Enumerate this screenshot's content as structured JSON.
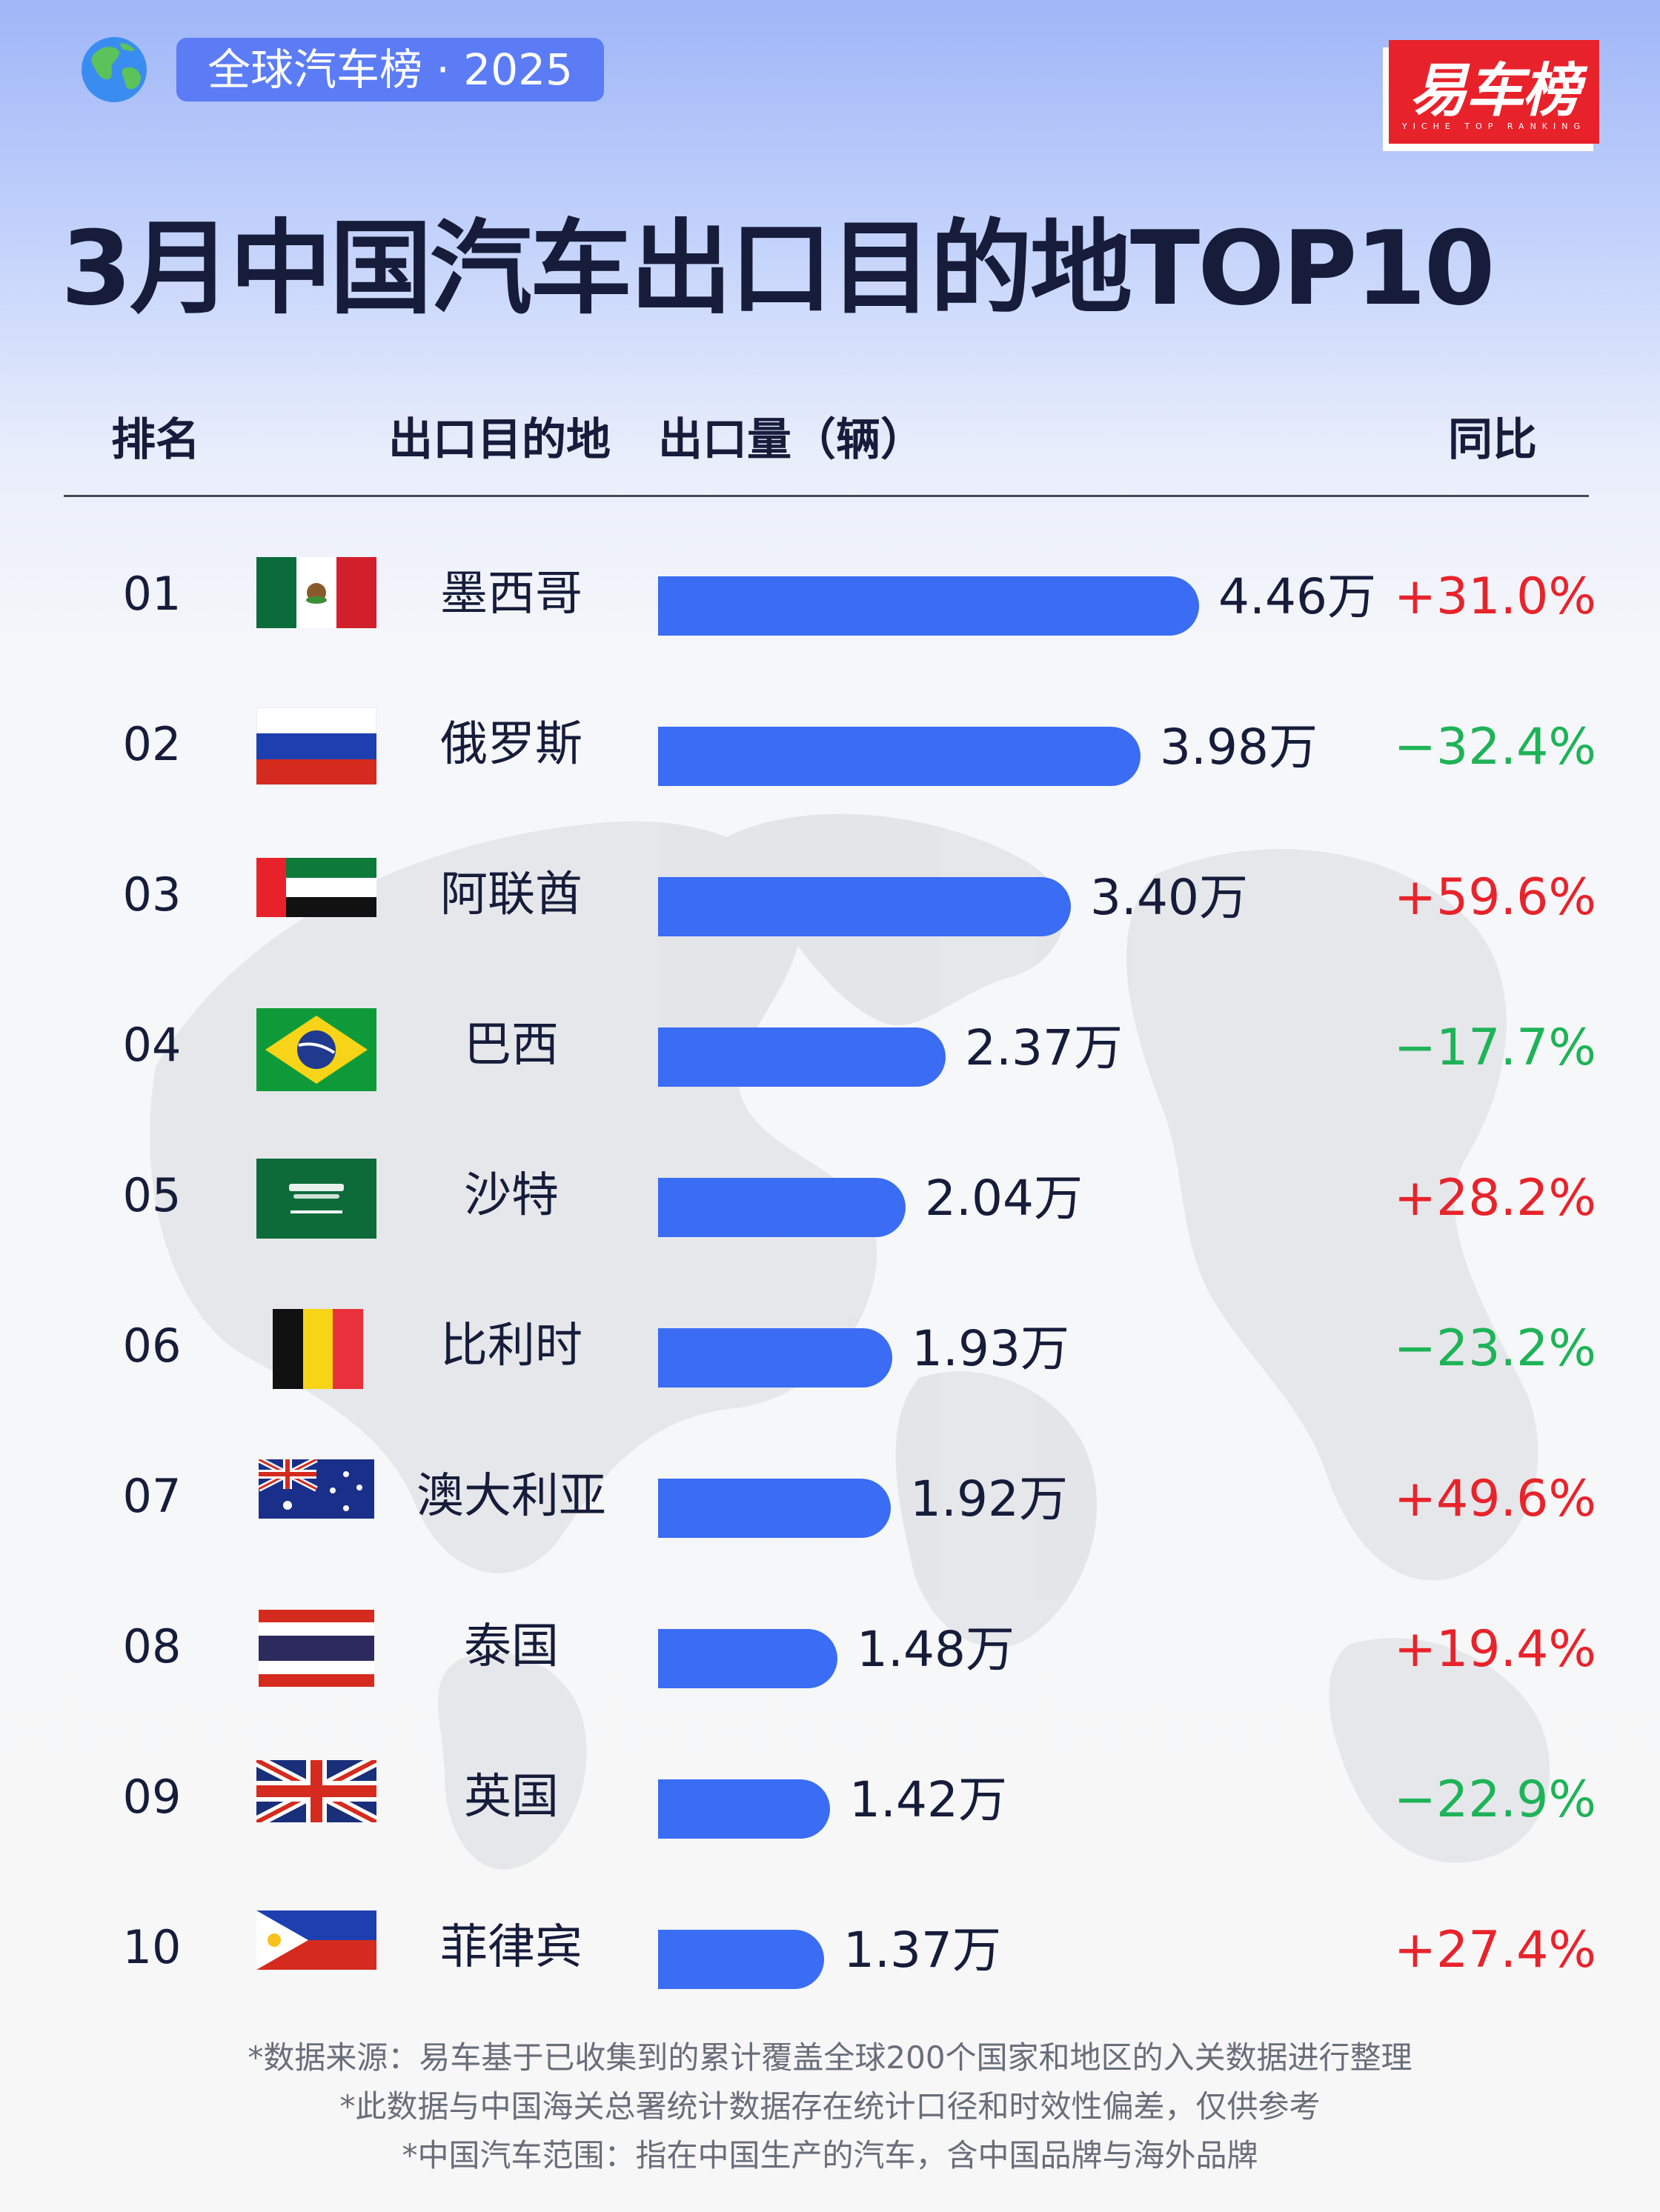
{
  "badge": {
    "label": "全球汽车榜 · 2025"
  },
  "logo": {
    "text": "易车榜",
    "subtitle": "YICHE TOP RANKING"
  },
  "title": "3月中国汽车出口目的地TOP10",
  "headers": {
    "rank": "排名",
    "destination": "出口目的地",
    "volume": "出口量（辆）",
    "yoy": "同比"
  },
  "colors": {
    "bar": "#3a6cf4",
    "positive": "#e8232b",
    "negative": "#1fb358"
  },
  "chart_data": {
    "type": "bar",
    "orientation": "horizontal",
    "title": "3月中国汽车出口目的地TOP10",
    "categories": [
      "墨西哥",
      "俄罗斯",
      "阿联酋",
      "巴西",
      "沙特",
      "比利时",
      "澳大利亚",
      "泰国",
      "英国",
      "菲律宾"
    ],
    "values": [
      4.46,
      3.98,
      3.4,
      2.37,
      2.04,
      1.93,
      1.92,
      1.48,
      1.42,
      1.37
    ],
    "unit": "万辆"
  },
  "rows": [
    {
      "rank": "01",
      "country": "墨西哥",
      "flag": "mexico-flag",
      "value_label": "4.46万",
      "yoy": "+31.0%",
      "dir": "up"
    },
    {
      "rank": "02",
      "country": "俄罗斯",
      "flag": "russia-flag",
      "value_label": "3.98万",
      "yoy": "−32.4%",
      "dir": "down"
    },
    {
      "rank": "03",
      "country": "阿联酋",
      "flag": "uae-flag",
      "value_label": "3.40万",
      "yoy": "+59.6%",
      "dir": "up"
    },
    {
      "rank": "04",
      "country": "巴西",
      "flag": "brazil-flag",
      "value_label": "2.37万",
      "yoy": "−17.7%",
      "dir": "down"
    },
    {
      "rank": "05",
      "country": "沙特",
      "flag": "saudi-flag",
      "value_label": "2.04万",
      "yoy": "+28.2%",
      "dir": "up"
    },
    {
      "rank": "06",
      "country": "比利时",
      "flag": "belgium-flag",
      "value_label": "1.93万",
      "yoy": "−23.2%",
      "dir": "down"
    },
    {
      "rank": "07",
      "country": "澳大利亚",
      "flag": "australia-flag",
      "value_label": "1.92万",
      "yoy": "+49.6%",
      "dir": "up"
    },
    {
      "rank": "08",
      "country": "泰国",
      "flag": "thailand-flag",
      "value_label": "1.48万",
      "yoy": "+19.4%",
      "dir": "up"
    },
    {
      "rank": "09",
      "country": "英国",
      "flag": "uk-flag",
      "value_label": "1.42万",
      "yoy": "−22.9%",
      "dir": "down"
    },
    {
      "rank": "10",
      "country": "菲律宾",
      "flag": "philippines-flag",
      "value_label": "1.37万",
      "yoy": "+27.4%",
      "dir": "up"
    }
  ],
  "notes": [
    "*数据来源：易车基于已收集到的累计覆盖全球200个国家和地区的入关数据进行整理",
    "*此数据与中国海关总署统计数据存在统计口径和时效性偏差，仅供参考",
    "*中国汽车范围：指在中国生产的汽车，含中国品牌与海外品牌"
  ]
}
